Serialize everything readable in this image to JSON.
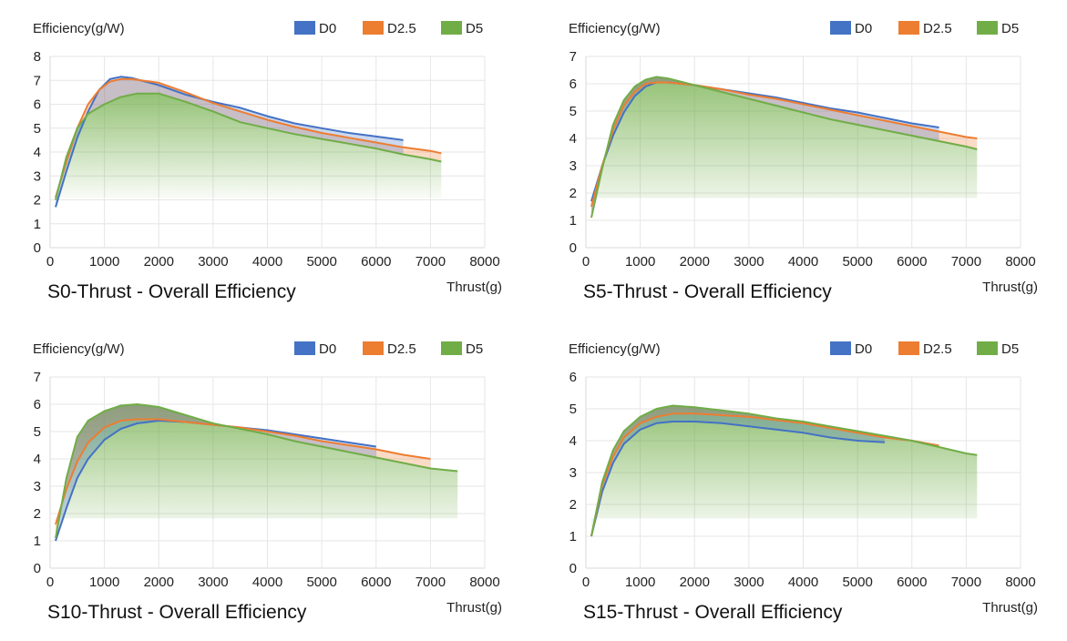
{
  "chart_data": [
    {
      "type": "area",
      "title": "S0-Thrust - Overall Efficiency",
      "xlabel": "Thrust(g)",
      "ylabel": "Efficiency(g/W)",
      "xlim": [
        0,
        8000
      ],
      "ylim": [
        0,
        8
      ],
      "x_ticks": [
        "0",
        "1000",
        "2000",
        "3000",
        "4000",
        "5000",
        "6000",
        "7000",
        "8000"
      ],
      "y_ticks": [
        "0",
        "1",
        "2",
        "3",
        "4",
        "5",
        "6",
        "7",
        "8"
      ],
      "legend": [
        "D0",
        "D2.5",
        "D5"
      ],
      "series": [
        {
          "name": "D0",
          "color": "#4472c4",
          "x": [
            100,
            300,
            500,
            700,
            900,
            1100,
            1300,
            1500,
            2000,
            2500,
            3000,
            3500,
            4000,
            4500,
            5000,
            5500,
            6000,
            6500
          ],
          "y": [
            1.7,
            3.2,
            4.6,
            5.7,
            6.6,
            7.05,
            7.15,
            7.1,
            6.8,
            6.4,
            6.1,
            5.85,
            5.5,
            5.2,
            5.0,
            4.8,
            4.65,
            4.5
          ]
        },
        {
          "name": "D2.5",
          "color": "#ed7d31",
          "x": [
            100,
            300,
            500,
            700,
            900,
            1100,
            1300,
            1500,
            2000,
            2500,
            3000,
            3500,
            4000,
            4500,
            5000,
            5500,
            6000,
            6500,
            7000,
            7200
          ],
          "y": [
            2.1,
            3.6,
            5.0,
            6.0,
            6.6,
            6.95,
            7.05,
            7.05,
            6.9,
            6.5,
            6.05,
            5.7,
            5.35,
            5.05,
            4.8,
            4.6,
            4.4,
            4.2,
            4.05,
            3.95
          ]
        },
        {
          "name": "D5",
          "color": "#70ad47",
          "x": [
            100,
            300,
            500,
            700,
            1000,
            1300,
            1600,
            2000,
            2500,
            3000,
            3500,
            4000,
            4500,
            5000,
            5500,
            6000,
            6500,
            7000,
            7200
          ],
          "y": [
            2.0,
            3.8,
            5.0,
            5.6,
            6.0,
            6.3,
            6.45,
            6.45,
            6.1,
            5.7,
            5.25,
            5.0,
            4.75,
            4.55,
            4.35,
            4.15,
            3.9,
            3.7,
            3.6
          ]
        }
      ]
    },
    {
      "type": "area",
      "title": "S5-Thrust - Overall Efficiency",
      "xlabel": "Thrust(g)",
      "ylabel": "Efficiency(g/W)",
      "xlim": [
        0,
        8000
      ],
      "ylim": [
        0,
        7
      ],
      "x_ticks": [
        "0",
        "1000",
        "2000",
        "3000",
        "4000",
        "5000",
        "6000",
        "7000",
        "8000"
      ],
      "y_ticks": [
        "0",
        "1",
        "2",
        "3",
        "4",
        "5",
        "6",
        "7"
      ],
      "legend": [
        "D0",
        "D2.5",
        "D5"
      ],
      "series": [
        {
          "name": "D0",
          "color": "#4472c4",
          "x": [
            100,
            300,
            500,
            700,
            900,
            1100,
            1300,
            1500,
            2000,
            2500,
            3000,
            3500,
            4000,
            4500,
            5000,
            5500,
            6000,
            6500
          ],
          "y": [
            1.7,
            3.0,
            4.1,
            4.95,
            5.55,
            5.9,
            6.05,
            6.05,
            5.95,
            5.8,
            5.65,
            5.5,
            5.3,
            5.1,
            4.95,
            4.75,
            4.55,
            4.4
          ]
        },
        {
          "name": "D2.5",
          "color": "#ed7d31",
          "x": [
            100,
            300,
            500,
            700,
            900,
            1100,
            1300,
            1500,
            2000,
            2500,
            3000,
            3500,
            4000,
            4500,
            5000,
            5500,
            6000,
            6500,
            7000,
            7200
          ],
          "y": [
            1.5,
            3.0,
            4.3,
            5.2,
            5.7,
            6.0,
            6.05,
            6.05,
            5.95,
            5.8,
            5.6,
            5.45,
            5.25,
            5.05,
            4.85,
            4.65,
            4.45,
            4.25,
            4.05,
            4.0
          ]
        },
        {
          "name": "D5",
          "color": "#70ad47",
          "x": [
            100,
            300,
            500,
            700,
            900,
            1100,
            1300,
            1500,
            2000,
            2500,
            3000,
            3500,
            4000,
            4500,
            5000,
            5500,
            6000,
            6500,
            7000,
            7200
          ],
          "y": [
            1.1,
            2.9,
            4.5,
            5.4,
            5.9,
            6.15,
            6.25,
            6.2,
            5.95,
            5.7,
            5.45,
            5.2,
            4.95,
            4.7,
            4.5,
            4.3,
            4.1,
            3.9,
            3.7,
            3.6
          ]
        }
      ]
    },
    {
      "type": "area",
      "title": "S10-Thrust - Overall Efficiency",
      "xlabel": "Thrust(g)",
      "ylabel": "Efficiency(g/W)",
      "xlim": [
        0,
        8000
      ],
      "ylim": [
        0,
        7
      ],
      "x_ticks": [
        "0",
        "1000",
        "2000",
        "3000",
        "4000",
        "5000",
        "6000",
        "7000",
        "8000"
      ],
      "y_ticks": [
        "0",
        "1",
        "2",
        "3",
        "4",
        "5",
        "6",
        "7"
      ],
      "legend": [
        "D0",
        "D2.5",
        "D5"
      ],
      "series": [
        {
          "name": "D0",
          "color": "#4472c4",
          "x": [
            100,
            300,
            500,
            700,
            1000,
            1300,
            1600,
            2000,
            2500,
            3000,
            3500,
            4000,
            4500,
            5000,
            5500,
            6000
          ],
          "y": [
            1.0,
            2.2,
            3.3,
            4.0,
            4.7,
            5.1,
            5.3,
            5.4,
            5.35,
            5.25,
            5.15,
            5.05,
            4.9,
            4.75,
            4.6,
            4.45
          ]
        },
        {
          "name": "D2.5",
          "color": "#ed7d31",
          "x": [
            100,
            300,
            500,
            700,
            1000,
            1300,
            1600,
            2000,
            2500,
            3000,
            3500,
            4000,
            4500,
            5000,
            5500,
            6000,
            6500,
            7000
          ],
          "y": [
            1.6,
            2.9,
            3.9,
            4.6,
            5.15,
            5.4,
            5.45,
            5.45,
            5.35,
            5.25,
            5.15,
            5.0,
            4.85,
            4.65,
            4.5,
            4.35,
            4.15,
            4.0
          ]
        },
        {
          "name": "D5",
          "color": "#70ad47",
          "x": [
            100,
            300,
            500,
            700,
            1000,
            1300,
            1600,
            2000,
            2500,
            3000,
            3500,
            4000,
            4500,
            5000,
            5500,
            6000,
            6500,
            7000,
            7500
          ],
          "y": [
            1.1,
            3.3,
            4.8,
            5.4,
            5.75,
            5.95,
            6.0,
            5.9,
            5.6,
            5.3,
            5.1,
            4.9,
            4.65,
            4.45,
            4.25,
            4.05,
            3.85,
            3.65,
            3.55
          ]
        }
      ]
    },
    {
      "type": "area",
      "title": "S15-Thrust - Overall Efficiency",
      "xlabel": "Thrust(g)",
      "ylabel": "Efficiency(g/W)",
      "xlim": [
        0,
        8000
      ],
      "ylim": [
        0,
        6
      ],
      "x_ticks": [
        "0",
        "1000",
        "2000",
        "3000",
        "4000",
        "5000",
        "6000",
        "7000",
        "8000"
      ],
      "y_ticks": [
        "0",
        "1",
        "2",
        "3",
        "4",
        "5",
        "6"
      ],
      "legend": [
        "D0",
        "D2.5",
        "D5"
      ],
      "series": [
        {
          "name": "D0",
          "color": "#4472c4",
          "x": [
            100,
            300,
            500,
            700,
            1000,
            1300,
            1600,
            2000,
            2500,
            3000,
            3500,
            4000,
            4500,
            5000,
            5500
          ],
          "y": [
            1.0,
            2.4,
            3.3,
            3.9,
            4.35,
            4.55,
            4.6,
            4.6,
            4.55,
            4.45,
            4.35,
            4.25,
            4.1,
            4.0,
            3.95
          ]
        },
        {
          "name": "D2.5",
          "color": "#ed7d31",
          "x": [
            100,
            300,
            500,
            700,
            1000,
            1300,
            1600,
            2000,
            2500,
            3000,
            3500,
            4000,
            4500,
            5000,
            5500,
            6000,
            6500
          ],
          "y": [
            1.0,
            2.6,
            3.5,
            4.1,
            4.55,
            4.75,
            4.85,
            4.85,
            4.8,
            4.75,
            4.65,
            4.55,
            4.4,
            4.25,
            4.1,
            4.0,
            3.85
          ]
        },
        {
          "name": "D5",
          "color": "#70ad47",
          "x": [
            100,
            300,
            500,
            700,
            1000,
            1300,
            1600,
            2000,
            2500,
            3000,
            3500,
            4000,
            4500,
            5000,
            5500,
            6000,
            6500,
            7000,
            7200
          ],
          "y": [
            1.0,
            2.7,
            3.7,
            4.3,
            4.75,
            5.0,
            5.1,
            5.05,
            4.95,
            4.85,
            4.7,
            4.6,
            4.45,
            4.3,
            4.15,
            4.0,
            3.8,
            3.6,
            3.55
          ]
        }
      ]
    }
  ]
}
